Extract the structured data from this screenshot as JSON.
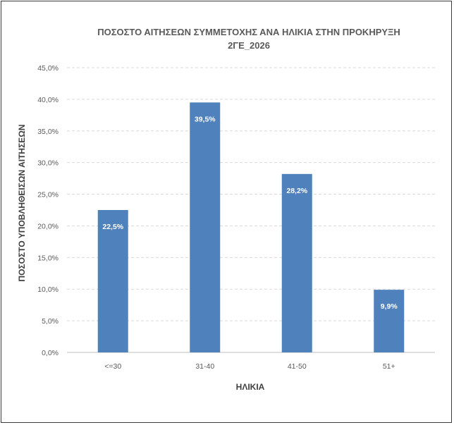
{
  "chart_data": {
    "type": "bar",
    "title": "ΠΟΣΟΣΤΟ ΑΙΤΗΣΕΩΝ ΣΥΜΜΕΤΟΧΗΣ ΑΝΑ ΗΛΙΚΙΑ ΣΤΗΝ ΠΡΟΚΗΡΥΞΗ",
    "subtitle": "2ΓΕ_2026",
    "xlabel": "ΗΛΙΚΙΑ",
    "ylabel": "ΠΟΣΟΣΤΟ ΥΠΟΒΛΗΘΕΙΣΩΝ ΑΙΤΗΣΕΩΝ",
    "categories": [
      "<=30",
      "31-40",
      "41-50",
      "51+"
    ],
    "values": [
      22.5,
      39.5,
      28.2,
      9.9
    ],
    "data_labels": [
      "22,5%",
      "39,5%",
      "28,2%",
      "9,9%"
    ],
    "ylim": [
      0,
      45
    ],
    "yticks": [
      0,
      5,
      10,
      15,
      20,
      25,
      30,
      35,
      40,
      45
    ],
    "ytick_labels": [
      "0,0%",
      "5,0%",
      "10,0%",
      "15,0%",
      "20,0%",
      "25,0%",
      "30,0%",
      "35,0%",
      "40,0%",
      "45,0%"
    ],
    "grid": true,
    "bar_color": "#4f81bd",
    "grid_color": "#d9d9d9",
    "legend": "none"
  }
}
